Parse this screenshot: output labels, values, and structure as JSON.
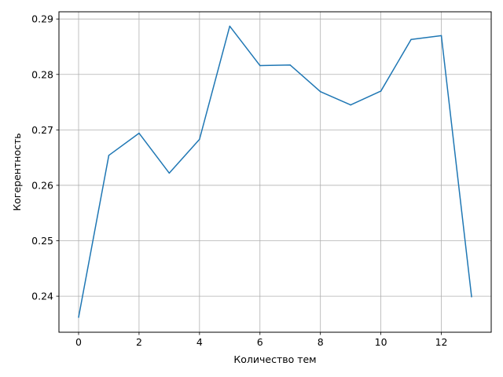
{
  "chart_data": {
    "type": "line",
    "title": "",
    "xlabel": "Количество тем",
    "ylabel": "Когерентность",
    "x": [
      0,
      1,
      2,
      3,
      4,
      5,
      6,
      7,
      8,
      9,
      10,
      11,
      12,
      13
    ],
    "series": [
      {
        "values": [
          0.2362,
          0.2654,
          0.2694,
          0.2622,
          0.2683,
          0.2887,
          0.2816,
          0.2817,
          0.2769,
          0.2745,
          0.277,
          0.2863,
          0.287,
          0.2399
        ],
        "color": "#1f77b4"
      }
    ],
    "xlim": [
      -0.65,
      13.65
    ],
    "ylim": [
      0.2335,
      0.2913
    ],
    "xticks": [
      "0",
      "2",
      "4",
      "6",
      "8",
      "10",
      "12"
    ],
    "yticks": [
      "0.24",
      "0.25",
      "0.26",
      "0.27",
      "0.28",
      "0.29"
    ],
    "grid": true
  }
}
